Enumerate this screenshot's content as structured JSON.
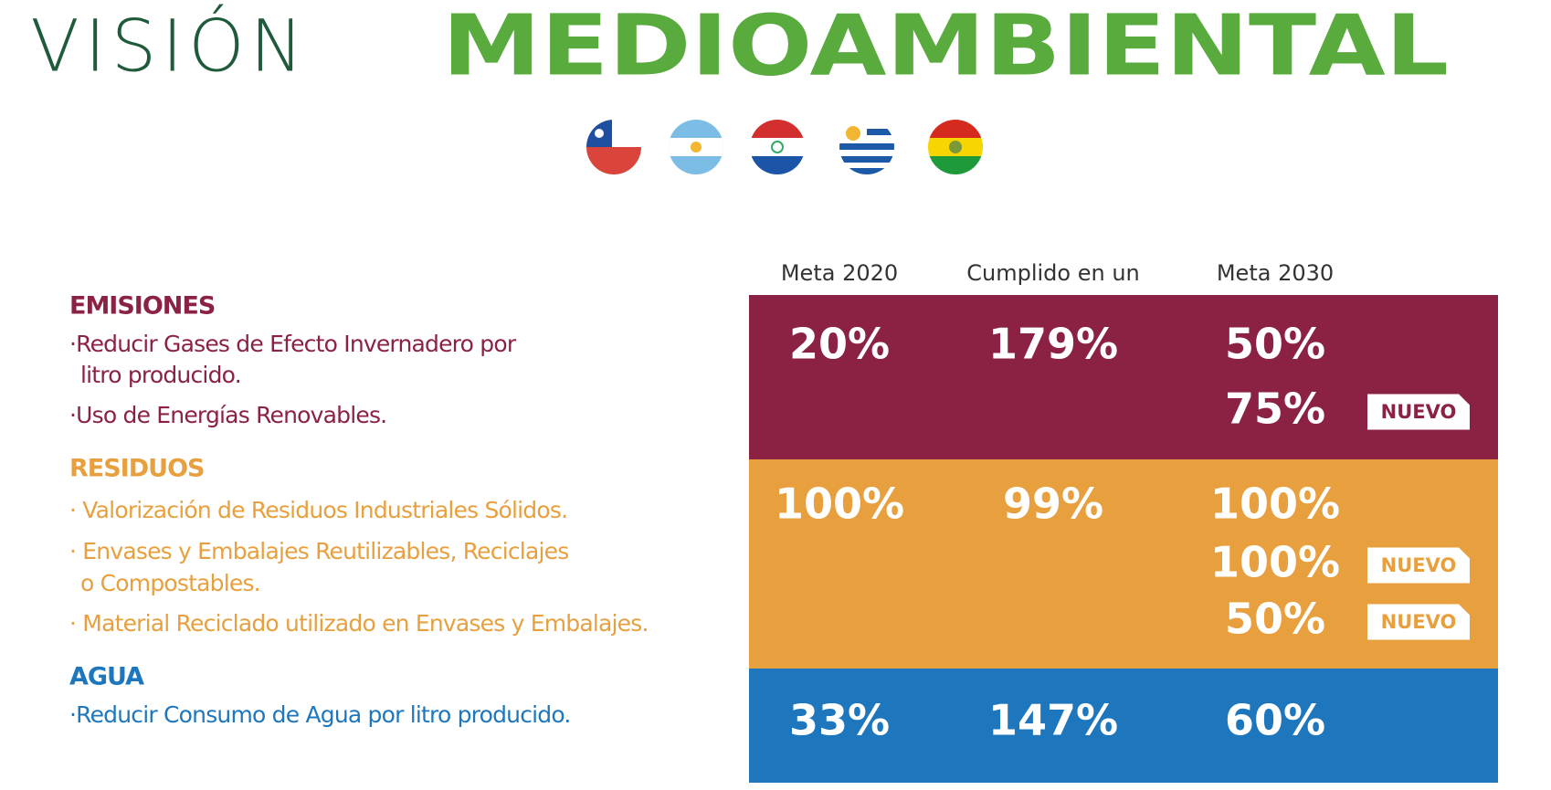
{
  "header": {
    "title_light": "VISIÓN",
    "title_bold": "MEDIOAMBIENTAL"
  },
  "table": {
    "columns": [
      "Meta 2020",
      "Cumplido en un",
      "Meta 2030"
    ],
    "sections": [
      {
        "title": "EMISIONES",
        "items": [
          [
            "·Reducir Gases de Efecto Invernadero por",
            "litro producido."
          ],
          [
            "·Uso de Energías Renovables."
          ]
        ],
        "meta_2020": "20%",
        "cumplido": "179%",
        "meta_2030": [
          {
            "value": "50%"
          },
          {
            "value": "75%",
            "badge": "NUEVO"
          }
        ]
      },
      {
        "title": "RESIDUOS",
        "items": [
          [
            "· Valorización de Residuos Industriales Sólidos."
          ],
          [
            "· Envases y Embalajes Reutilizables, Reciclajes",
            "o Compostables."
          ],
          [
            "· Material Reciclado utilizado en Envases y Embalajes."
          ]
        ],
        "meta_2020": "100%",
        "cumplido": "99%",
        "meta_2030": [
          {
            "value": "100%"
          },
          {
            "value": "100%",
            "badge": "NUEVO"
          },
          {
            "value": "50%",
            "badge": "NUEVO"
          }
        ]
      },
      {
        "title": "AGUA",
        "items": [
          [
            "·Reducir Consumo de Agua por litro producido."
          ]
        ],
        "meta_2020": "33%",
        "cumplido": "147%",
        "meta_2030": [
          {
            "value": "60%"
          }
        ]
      }
    ]
  }
}
